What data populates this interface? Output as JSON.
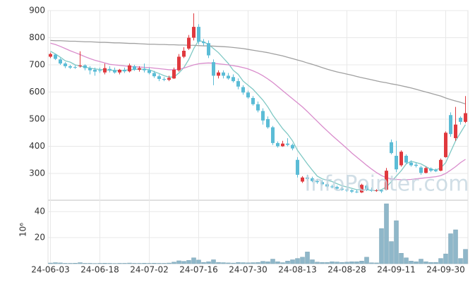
{
  "chart_data": {
    "type": "candlestick",
    "watermark": "InfoPointer.com",
    "categories": [
      "24-06-03",
      null,
      null,
      null,
      null,
      null,
      null,
      null,
      null,
      null,
      "24-06-18",
      null,
      null,
      null,
      null,
      null,
      null,
      null,
      null,
      null,
      "24-07-02",
      null,
      null,
      null,
      null,
      null,
      null,
      null,
      null,
      null,
      "24-07-16",
      null,
      null,
      null,
      null,
      null,
      null,
      null,
      null,
      null,
      "24-07-30",
      null,
      null,
      null,
      null,
      null,
      null,
      null,
      null,
      null,
      "24-08-13",
      null,
      null,
      null,
      null,
      null,
      null,
      null,
      null,
      null,
      "24-08-28",
      null,
      null,
      null,
      null,
      null,
      null,
      null,
      null,
      null,
      "24-09-11",
      null,
      null,
      null,
      null,
      null,
      null,
      null,
      null,
      null,
      "24-09-30",
      null,
      null,
      null,
      null
    ],
    "open": [
      730,
      738,
      720,
      705,
      695,
      692,
      695,
      698,
      688,
      682,
      680,
      672,
      685,
      680,
      672,
      682,
      676,
      695,
      682,
      686,
      680,
      670,
      658,
      648,
      645,
      650,
      680,
      730,
      760,
      800,
      840,
      785,
      780,
      710,
      660,
      672,
      660,
      655,
      640,
      618,
      598,
      578,
      555,
      530,
      500,
      470,
      412,
      400,
      410,
      405,
      350,
      270,
      285,
      282,
      272,
      268,
      260,
      252,
      250,
      244,
      240,
      238,
      233,
      230,
      255,
      240,
      236,
      238,
      240,
      415,
      365,
      330,
      365,
      340,
      332,
      322,
      302,
      318,
      312,
      310,
      360,
      515,
      430,
      505,
      490
    ],
    "high": [
      745,
      740,
      725,
      710,
      700,
      698,
      750,
      702,
      695,
      690,
      690,
      705,
      695,
      690,
      685,
      690,
      705,
      700,
      695,
      705,
      690,
      678,
      665,
      655,
      660,
      690,
      740,
      765,
      810,
      890,
      850,
      795,
      790,
      720,
      680,
      680,
      670,
      665,
      650,
      625,
      605,
      585,
      565,
      540,
      510,
      475,
      418,
      420,
      430,
      410,
      360,
      290,
      295,
      288,
      280,
      275,
      265,
      258,
      255,
      250,
      246,
      242,
      240,
      262,
      260,
      248,
      242,
      240,
      320,
      425,
      420,
      385,
      370,
      348,
      340,
      328,
      325,
      322,
      318,
      355,
      455,
      525,
      545,
      510,
      585
    ],
    "low": [
      725,
      718,
      700,
      688,
      685,
      685,
      690,
      680,
      665,
      660,
      670,
      665,
      672,
      668,
      665,
      670,
      672,
      678,
      675,
      672,
      665,
      652,
      640,
      640,
      640,
      648,
      675,
      725,
      755,
      790,
      775,
      770,
      725,
      625,
      650,
      650,
      645,
      635,
      610,
      590,
      575,
      550,
      525,
      480,
      465,
      405,
      395,
      398,
      400,
      385,
      285,
      265,
      272,
      268,
      262,
      255,
      248,
      245,
      238,
      236,
      232,
      228,
      228,
      228,
      235,
      232,
      232,
      228,
      238,
      370,
      305,
      325,
      335,
      325,
      322,
      295,
      300,
      305,
      305,
      308,
      358,
      435,
      420,
      480,
      485
    ],
    "close": [
      740,
      722,
      705,
      695,
      690,
      690,
      698,
      688,
      680,
      675,
      678,
      688,
      680,
      672,
      682,
      676,
      698,
      682,
      688,
      680,
      670,
      658,
      648,
      645,
      652,
      682,
      730,
      752,
      800,
      840,
      785,
      780,
      735,
      660,
      672,
      660,
      650,
      640,
      620,
      598,
      580,
      555,
      532,
      495,
      470,
      412,
      400,
      410,
      405,
      392,
      295,
      285,
      280,
      272,
      268,
      260,
      252,
      250,
      244,
      240,
      238,
      233,
      232,
      258,
      240,
      236,
      238,
      234,
      310,
      375,
      315,
      380,
      340,
      330,
      328,
      302,
      320,
      310,
      308,
      350,
      450,
      445,
      480,
      490,
      522
    ],
    "up_color": "#e0393e",
    "down_color": "#5bbcd6",
    "lines": [
      {
        "color": "#7fc8c4",
        "values": [
          750,
          740,
          728,
          715,
          710,
          700,
          695,
          692,
          688,
          685,
          683,
          682,
          680,
          680,
          678,
          680,
          682,
          683,
          684,
          684,
          682,
          675,
          668,
          660,
          655,
          655,
          670,
          690,
          720,
          760,
          790,
          785,
          775,
          760,
          745,
          725,
          705,
          680,
          665,
          640,
          625,
          610,
          590,
          570,
          545,
          515,
          490,
          465,
          445,
          420,
          385,
          360,
          335,
          312,
          290,
          280,
          275,
          270,
          262,
          255,
          250,
          245,
          240,
          240,
          240,
          238,
          236,
          240,
          250,
          270,
          290,
          310,
          335,
          345,
          340,
          335,
          325,
          315,
          313,
          320,
          340,
          380,
          420,
          450,
          480
        ]
      },
      {
        "color": "#d98ccc",
        "values": [
          780,
          775,
          768,
          760,
          752,
          745,
          738,
          730,
          723,
          717,
          712,
          707,
          702,
          700,
          698,
          696,
          694,
          693,
          692,
          691,
          690,
          688,
          686,
          684,
          682,
          682,
          684,
          688,
          694,
          700,
          704,
          706,
          707,
          706,
          704,
          702,
          700,
          697,
          694,
          690,
          685,
          678,
          670,
          660,
          648,
          635,
          620,
          605,
          590,
          575,
          560,
          545,
          528,
          510,
          492,
          474,
          457,
          440,
          424,
          408,
          392,
          375,
          360,
          345,
          330,
          316,
          303,
          292,
          284,
          280,
          278,
          277,
          277,
          278,
          280,
          282,
          284,
          286,
          288,
          292,
          300,
          312,
          325,
          340,
          352
        ]
      },
      {
        "color": "#a0a0a0",
        "values": [
          790,
          789,
          789,
          788,
          787,
          787,
          786,
          785,
          785,
          784,
          783,
          783,
          782,
          781,
          781,
          780,
          779,
          779,
          778,
          777,
          776,
          776,
          775,
          775,
          774,
          774,
          773,
          773,
          772,
          772,
          771,
          770,
          770,
          769,
          768,
          767,
          766,
          764,
          762,
          760,
          757,
          754,
          751,
          748,
          745,
          741,
          737,
          733,
          728,
          723,
          718,
          713,
          707,
          702,
          696,
          690,
          684,
          679,
          674,
          670,
          666,
          662,
          657,
          653,
          649,
          645,
          641,
          637,
          634,
          630,
          627,
          623,
          619,
          615,
          610,
          605,
          600,
          595,
          590,
          585,
          578,
          572,
          567,
          562,
          556
        ]
      }
    ],
    "ylim": [
      200,
      900
    ],
    "yticks": [
      300,
      400,
      500,
      600,
      700,
      800,
      900
    ],
    "volume": {
      "color": "#8fb7c9",
      "axis_label": "10⁶",
      "ylim": [
        0,
        49
      ],
      "yticks": [
        20,
        40
      ],
      "values": [
        0.5,
        0.8,
        0.6,
        0.3,
        0.3,
        0.4,
        0.8,
        0.3,
        0.3,
        0.2,
        0.3,
        0.4,
        0.3,
        0.2,
        0.3,
        0.3,
        0.5,
        0.3,
        0.3,
        0.4,
        0.3,
        0.4,
        0.3,
        0.3,
        0.5,
        1.2,
        2.2,
        1.8,
        2.5,
        4.5,
        2.8,
        1.0,
        1.5,
        3.0,
        1.0,
        0.8,
        0.6,
        0.5,
        0.9,
        0.8,
        0.7,
        0.8,
        0.9,
        1.8,
        1.5,
        3.5,
        1.5,
        0.8,
        2.0,
        3.0,
        4.0,
        5.0,
        9.0,
        3.0,
        1.2,
        1.0,
        1.0,
        1.5,
        1.3,
        1.0,
        1.2,
        1.5,
        1.5,
        2.0,
        5.0,
        0.7,
        0.6,
        27,
        46,
        17,
        33,
        8,
        4.5,
        2.0,
        1.5,
        3.5,
        1.5,
        1.0,
        1.0,
        4.0,
        7.5,
        23,
        26,
        4.0,
        11
      ]
    }
  }
}
